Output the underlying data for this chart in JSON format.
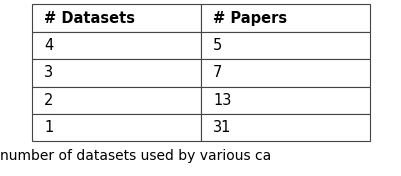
{
  "col_headers": [
    "# Datasets",
    "# Papers"
  ],
  "rows": [
    [
      "4",
      "5"
    ],
    [
      "3",
      "7"
    ],
    [
      "2",
      "13"
    ],
    [
      "1",
      "31"
    ]
  ],
  "caption": "number of datasets used by various ca",
  "background_color": "#ffffff",
  "header_fontsize": 10.5,
  "cell_fontsize": 10.5,
  "caption_fontsize": 10,
  "figsize": [
    4.02,
    1.76
  ],
  "dpi": 100,
  "edge_color": "#444444",
  "text_color": "#000000"
}
